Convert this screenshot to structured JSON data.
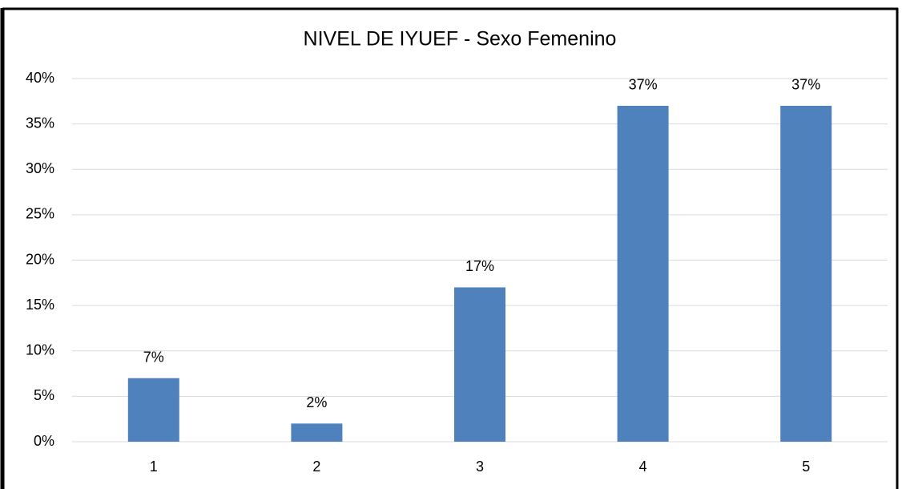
{
  "chart_data": {
    "type": "bar",
    "title": "NIVEL DE IYUEF - Sexo Femenino",
    "categories": [
      "1",
      "2",
      "3",
      "4",
      "5"
    ],
    "values": [
      7,
      2,
      17,
      37,
      37
    ],
    "value_labels": [
      "7%",
      "2%",
      "17%",
      "37%",
      "37%"
    ],
    "color": "#4f81bd",
    "ylim": [
      0,
      40
    ],
    "yticks": [
      {
        "value": 0,
        "label": "0%"
      },
      {
        "value": 5,
        "label": "5%"
      },
      {
        "value": 10,
        "label": "10%"
      },
      {
        "value": 15,
        "label": "15%"
      },
      {
        "value": 20,
        "label": "20%"
      },
      {
        "value": 25,
        "label": "25%"
      },
      {
        "value": 30,
        "label": "30%"
      },
      {
        "value": 35,
        "label": "35%"
      },
      {
        "value": 40,
        "label": "40%"
      }
    ],
    "grid": true
  }
}
